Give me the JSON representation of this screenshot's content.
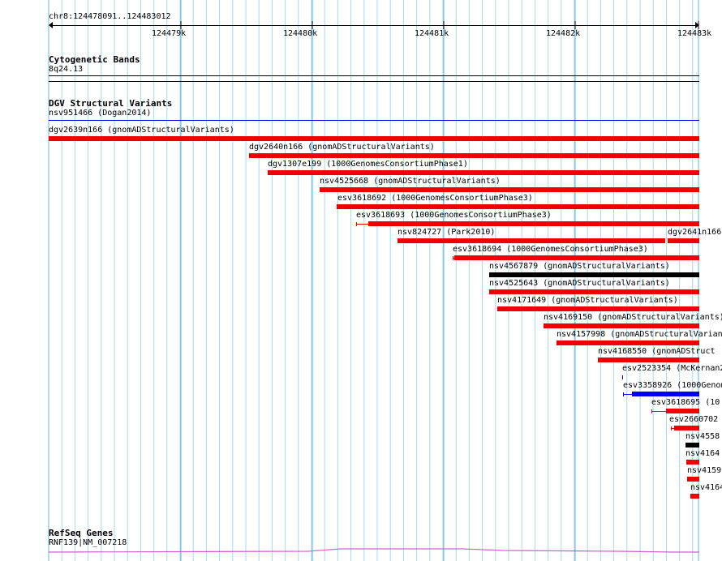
{
  "locus": "chr8:124478091..124483012",
  "ruler_ticks": [
    "124479k",
    "124480k",
    "124481k",
    "124482k",
    "124483k"
  ],
  "cytoband_track": {
    "title": "Cytogenetic Bands",
    "band": "8q24.13"
  },
  "dgv_track": {
    "title": "DGV Structural Variants",
    "first_feature": "nsv951466 (Dogan2014)",
    "features": [
      {
        "label": "dgv2639n166 (gnomADStructuralVariants)",
        "color": "#ee0000"
      },
      {
        "label": "dgv2640n166 (gnomADStructuralVariants)",
        "color": "#ee0000"
      },
      {
        "label": "dgv1307e199 (1000GenomesConsortiumPhase1)",
        "color": "#ee0000"
      },
      {
        "label": "nsv4525668 (gnomADStructuralVariants)",
        "color": "#ee0000"
      },
      {
        "label": "esv3618692 (1000GenomesConsortiumPhase3)",
        "color": "#ee0000"
      },
      {
        "label": "esv3618693 (1000GenomesConsortiumPhase3)",
        "color": "#ee0000"
      },
      {
        "label": "nsv824727 (Park2010)",
        "color": "#ee0000"
      },
      {
        "label": "dgv2641n166",
        "color": "#ee0000"
      },
      {
        "label": "esv3618694 (1000GenomesConsortiumPhase3)",
        "color": "#ee0000"
      },
      {
        "label": "nsv4567879 (gnomADStructuralVariants)",
        "color": "#000000"
      },
      {
        "label": "nsv4525643 (gnomADStructuralVariants)",
        "color": "#ee0000"
      },
      {
        "label": "nsv4171649 (gnomADStructuralVariants)",
        "color": "#ee0000"
      },
      {
        "label": "nsv4169150 (gnomADStructuralVariants)",
        "color": "#ee0000"
      },
      {
        "label": "nsv4157998 (gnomADStructuralVarian",
        "color": "#ee0000"
      },
      {
        "label": "nsv4168550 (gnomADStruct",
        "color": "#ee0000"
      },
      {
        "label": "esv2523354 (McKernan2",
        "color": "#0000ee"
      },
      {
        "label": "esv3358926 (1000Genom",
        "color": "#0000ee"
      },
      {
        "label": "esv3618695 (10",
        "color": "#ee0000"
      },
      {
        "label": "esv2660702",
        "color": "#ee0000"
      },
      {
        "label": "nsv4558",
        "color": "#000000"
      },
      {
        "label": "nsv4164",
        "color": "#ee0000"
      },
      {
        "label": "nsv4159",
        "color": "#ee0000"
      },
      {
        "label": "nsv4164",
        "color": "#ee0000"
      }
    ]
  },
  "refseq_track": {
    "title": "RefSeq Genes",
    "gene": "RNF139|NM_007218"
  },
  "colors": {
    "grid": "#a8d8ec",
    "variant_loss": "#ee0000",
    "variant_gain": "#0000ee",
    "variant_complex": "#000000",
    "gene_line": "#cc66cc"
  }
}
